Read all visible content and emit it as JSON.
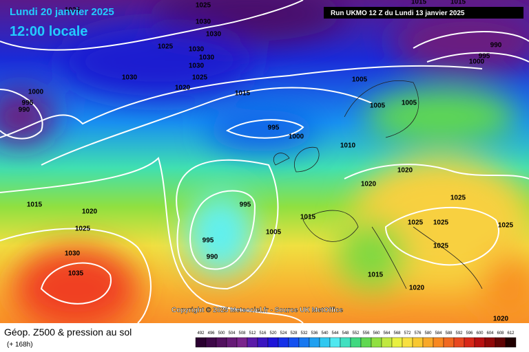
{
  "header": {
    "date": "Lundi 20 janvier 2025",
    "time": "12:00 locale",
    "run": "Run UKMO 12 Z du Lundi 13 janvier 2025"
  },
  "copyright": "Copyright © 2025 Meteociel.fr - Source UK MetOffice",
  "footer": {
    "title": "Géop. Z500 & pression au sol",
    "subtitle": "(+ 168h)"
  },
  "isobar_labels": [
    1025,
    1025,
    1030,
    1030,
    1025,
    1030,
    1030,
    1030,
    1030,
    1025,
    1020,
    1015,
    1005,
    1000,
    995,
    990,
    1005,
    1005,
    995,
    1000,
    1010,
    1020,
    1020,
    1015,
    1020,
    1025,
    995,
    1005,
    1015,
    995,
    990,
    1030,
    1035,
    1025,
    1025,
    1025,
    1025,
    1025,
    1015,
    1020,
    1020,
    990,
    995,
    1000,
    1015,
    1015
  ],
  "legend": [
    {
      "value": 492,
      "color": "#2a0030"
    },
    {
      "value": 496,
      "color": "#3e0848"
    },
    {
      "value": 500,
      "color": "#52105e"
    },
    {
      "value": 504,
      "color": "#661a76"
    },
    {
      "value": 508,
      "color": "#7a248c"
    },
    {
      "value": 512,
      "color": "#5a1aa8"
    },
    {
      "value": 516,
      "color": "#3a14c0"
    },
    {
      "value": 520,
      "color": "#1e14d8"
    },
    {
      "value": 524,
      "color": "#1430e8"
    },
    {
      "value": 528,
      "color": "#1450f0"
    },
    {
      "value": 532,
      "color": "#1878f0"
    },
    {
      "value": 536,
      "color": "#20a0f0"
    },
    {
      "value": 540,
      "color": "#30c8f0"
    },
    {
      "value": 544,
      "color": "#50e8f0"
    },
    {
      "value": 548,
      "color": "#40e0c0"
    },
    {
      "value": 552,
      "color": "#40d880"
    },
    {
      "value": 556,
      "color": "#60d850"
    },
    {
      "value": 560,
      "color": "#90e040"
    },
    {
      "value": 564,
      "color": "#c0e840"
    },
    {
      "value": 568,
      "color": "#e8f040"
    },
    {
      "value": 572,
      "color": "#f8e040"
    },
    {
      "value": 576,
      "color": "#f8c830"
    },
    {
      "value": 580,
      "color": "#f8a828"
    },
    {
      "value": 584,
      "color": "#f88820"
    },
    {
      "value": 588,
      "color": "#f06820"
    },
    {
      "value": 592,
      "color": "#e84820"
    },
    {
      "value": 596,
      "color": "#d82818"
    },
    {
      "value": 600,
      "color": "#b81010"
    },
    {
      "value": 604,
      "color": "#900808"
    },
    {
      "value": 608,
      "color": "#600404"
    },
    {
      "value": 612,
      "color": "#200000"
    }
  ]
}
